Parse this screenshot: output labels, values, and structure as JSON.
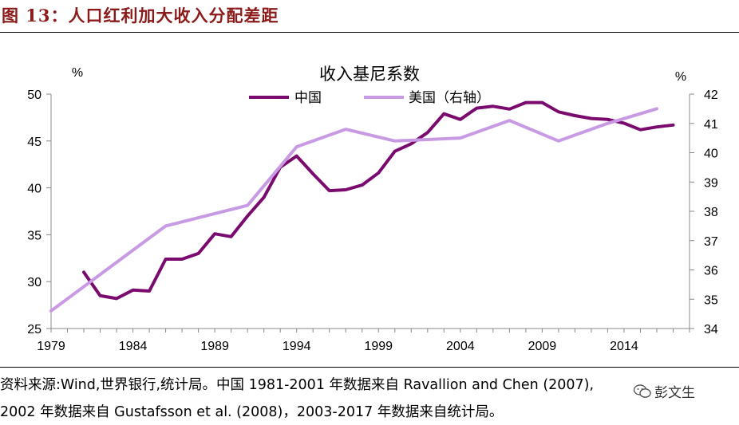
{
  "figure_title": "图 13：人口红利加大收入分配差距",
  "source_line1": "资料来源:Wind,世界银行,统计局。中国 1981-2001 年数据来自 Ravallion and Chen (2007),",
  "source_line2": "2002 年数据来自 Gustafsson et al. (2008)，2003-2017 年数据来自统计局。",
  "watermark": "彭文生",
  "chart_data": {
    "type": "line",
    "title": "收入基尼系数",
    "ylabel_left": "%",
    "ylabel_right": "%",
    "legend_placement": "top",
    "grid": false,
    "xlim": [
      1979,
      2018
    ],
    "x_ticks": [
      1979,
      1984,
      1989,
      1994,
      1999,
      2004,
      2009,
      2014
    ],
    "ylim_left": [
      25,
      50
    ],
    "y_ticks_left": [
      25,
      30,
      35,
      40,
      45,
      50
    ],
    "ylim_right": [
      34,
      42
    ],
    "y_ticks_right": [
      34,
      35,
      36,
      37,
      38,
      39,
      40,
      41,
      42
    ],
    "series": [
      {
        "name": "中国",
        "axis": "left",
        "color": "#7a0a6e",
        "x": [
          1981,
          1982,
          1983,
          1984,
          1985,
          1986,
          1987,
          1988,
          1989,
          1990,
          1991,
          1992,
          1993,
          1994,
          1995,
          1996,
          1997,
          1998,
          1999,
          2000,
          2001,
          2002,
          2003,
          2004,
          2005,
          2006,
          2007,
          2008,
          2009,
          2010,
          2011,
          2012,
          2013,
          2014,
          2015,
          2016,
          2017
        ],
        "y": [
          31.0,
          28.5,
          28.2,
          29.1,
          29.0,
          32.4,
          32.4,
          33.0,
          35.1,
          34.8,
          37.0,
          39.0,
          42.2,
          43.4,
          41.5,
          39.7,
          39.8,
          40.3,
          41.6,
          43.9,
          44.7,
          45.9,
          47.9,
          47.3,
          48.5,
          48.7,
          48.4,
          49.1,
          49.1,
          48.1,
          47.7,
          47.4,
          47.3,
          46.9,
          46.2,
          46.5,
          46.7
        ]
      },
      {
        "name": "美国（右轴）",
        "axis": "right",
        "color": "#c79ae3",
        "x": [
          1979,
          1986,
          1991,
          1994,
          1997,
          2000,
          2004,
          2007,
          2010,
          2013,
          2016
        ],
        "y": [
          34.6,
          37.5,
          38.2,
          40.2,
          40.8,
          40.4,
          40.5,
          41.1,
          40.4,
          41.0,
          41.5
        ]
      }
    ]
  }
}
